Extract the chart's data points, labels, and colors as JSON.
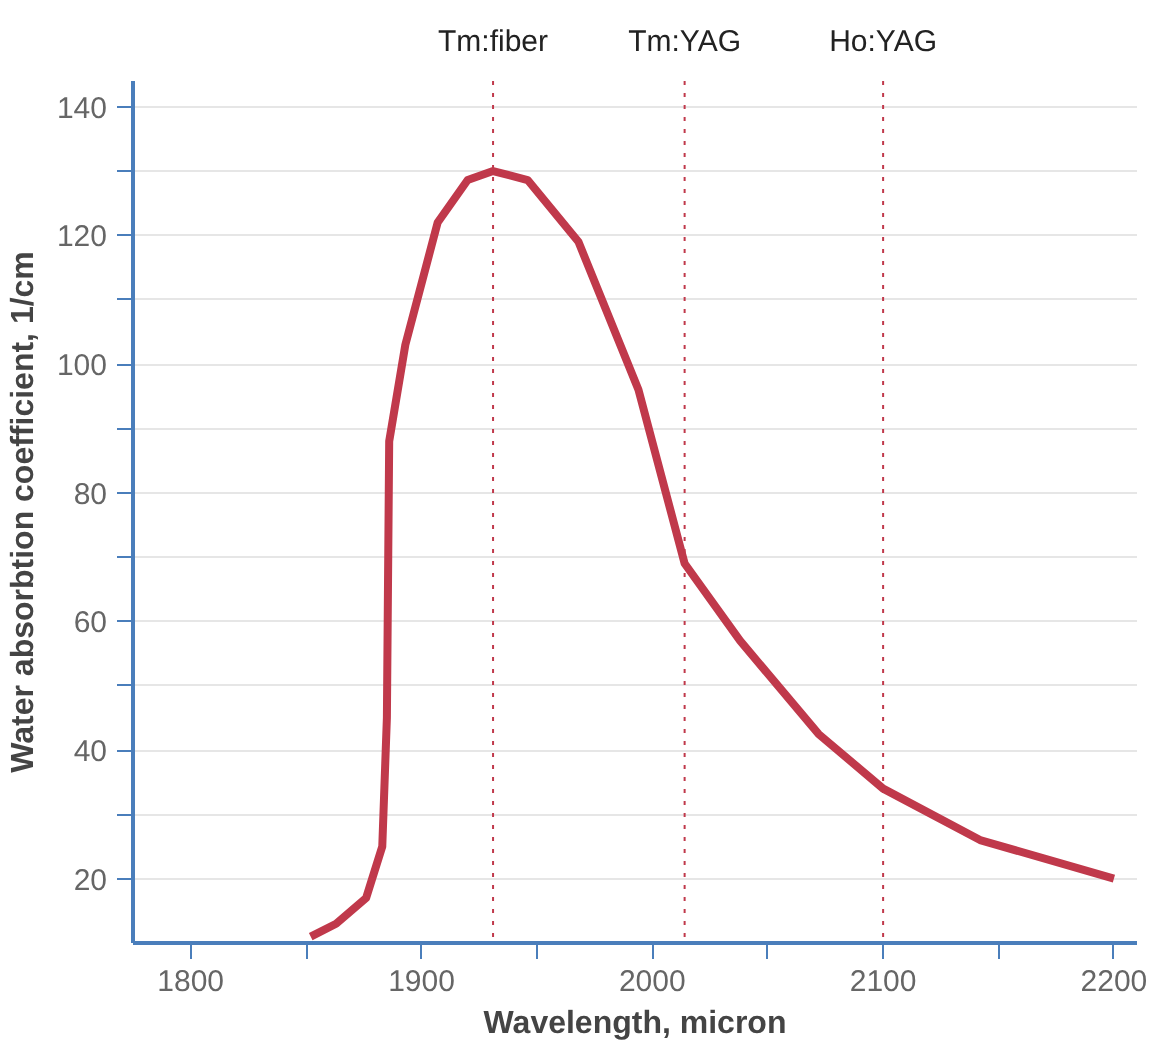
{
  "chart_data": {
    "type": "line",
    "xlabel": "Wavelength, micron",
    "ylabel": "Water absorbtion coefficient, 1/cm",
    "x": [
      1852,
      1863,
      1876,
      1883,
      1885,
      1886,
      1893,
      1907,
      1920,
      1931,
      1946,
      1968,
      1994,
      2014,
      2038,
      2072,
      2100,
      2142,
      2200
    ],
    "series": [
      {
        "color": "#c0394b",
        "values": [
          11,
          13,
          17,
          25,
          45,
          88,
          103,
          122,
          128.6,
          130,
          128.6,
          119,
          96,
          69,
          57,
          42.5,
          34,
          26,
          20
        ]
      }
    ],
    "xlim": [
      1775,
      2210
    ],
    "ylim": [
      10,
      144
    ],
    "xticks": [
      1800,
      {
        "value": 1850,
        "label": null
      },
      1900,
      {
        "value": 1950,
        "label": null
      },
      2000,
      {
        "value": 2050,
        "label": null
      },
      2100,
      {
        "value": 2150,
        "label": null
      },
      2200
    ],
    "yticks": [
      20,
      {
        "value": 30,
        "label": null
      },
      40,
      {
        "value": 50,
        "label": null
      },
      60,
      {
        "value": 70,
        "label": null
      },
      80,
      {
        "value": 90,
        "label": null
      },
      100,
      {
        "value": 110,
        "label": null
      },
      120,
      {
        "value": 130,
        "label": null
      },
      140
    ],
    "ref_lines": [
      {
        "axis": "x",
        "value": 1931,
        "label": "Tm:fiber",
        "color": "#c0394b",
        "line_style": "dotted"
      },
      {
        "axis": "x",
        "value": 2014,
        "label": "Tm:YAG",
        "color": "#c0394b",
        "line_style": "dotted"
      },
      {
        "axis": "x",
        "value": 2100,
        "label": "Ho:YAG",
        "color": "#c0394b",
        "line_style": "dotted"
      }
    ],
    "grid": "y",
    "marker": "none",
    "line_style": "solid"
  }
}
